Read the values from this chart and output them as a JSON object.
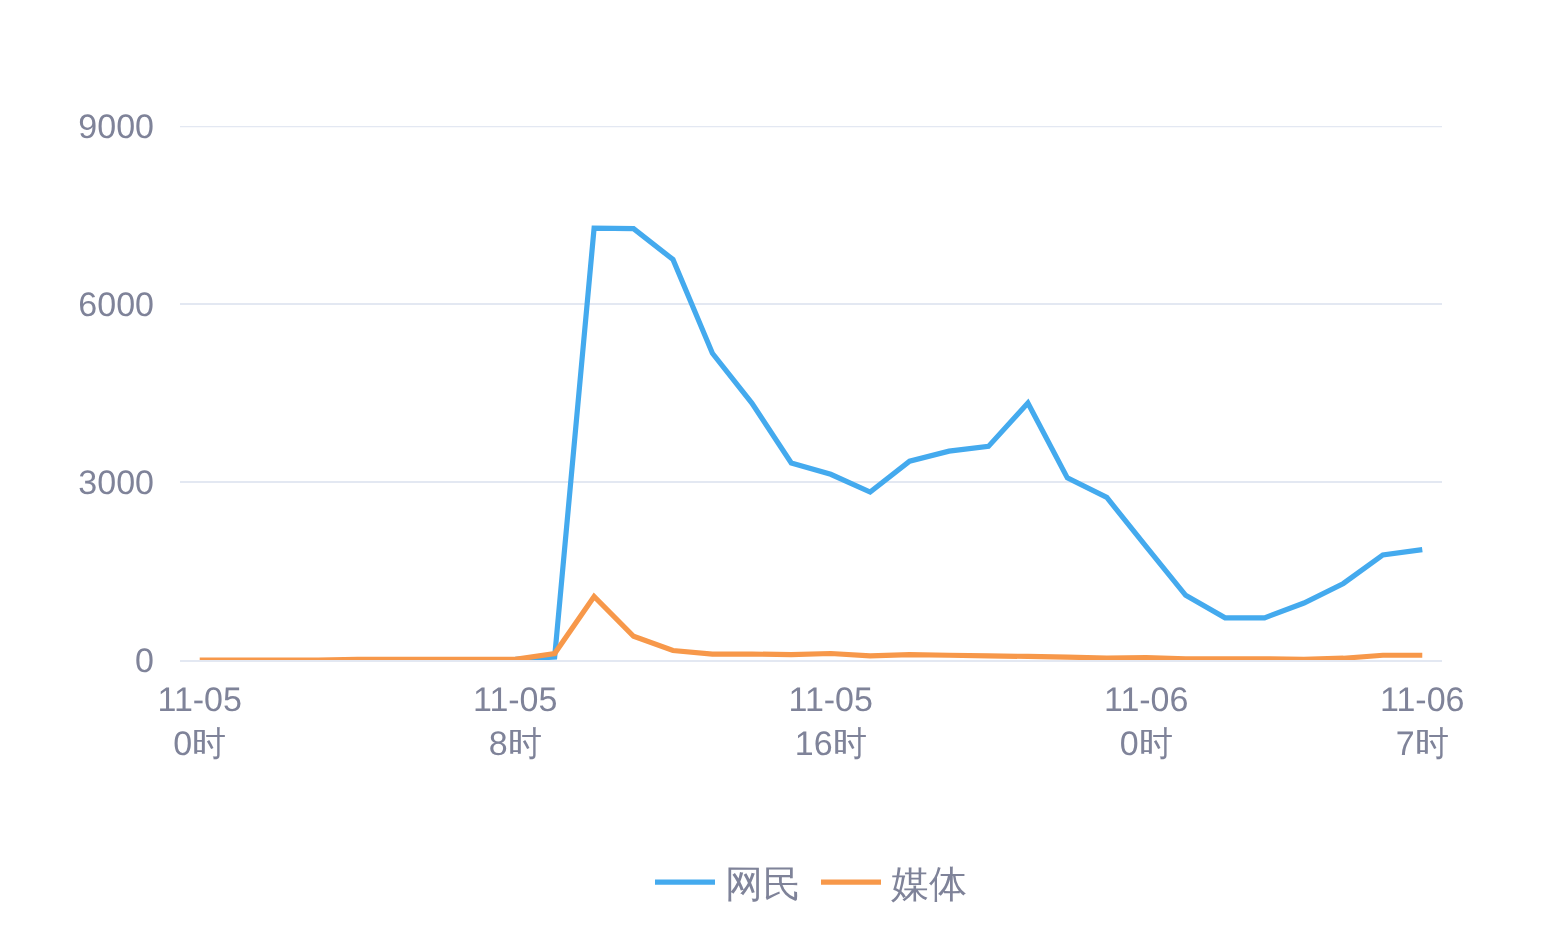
{
  "chart_data": {
    "type": "line",
    "categories": [
      "11-05\n0时",
      null,
      null,
      null,
      null,
      null,
      null,
      null,
      "11-05\n8时",
      null,
      null,
      null,
      null,
      null,
      null,
      null,
      "11-05\n16时",
      null,
      null,
      null,
      null,
      null,
      null,
      null,
      "11-06\n0时",
      null,
      null,
      null,
      null,
      null,
      null,
      "11-06\n7时"
    ],
    "series": [
      {
        "name": "网民",
        "color": "#44aaee",
        "values": [
          null,
          null,
          null,
          null,
          null,
          null,
          null,
          0,
          10,
          50,
          7280,
          7270,
          6750,
          5170,
          4330,
          3320,
          3130,
          2830,
          3350,
          3520,
          3600,
          4330,
          3070,
          2740,
          1910,
          1090,
          710,
          710,
          960,
          1290,
          1770,
          1860
        ]
      },
      {
        "name": "媒体",
        "color": "#f7984a",
        "values": [
          0,
          0,
          0,
          0,
          10,
          10,
          10,
          10,
          10,
          110,
          1070,
          400,
          160,
          100,
          100,
          90,
          110,
          70,
          90,
          80,
          70,
          60,
          50,
          30,
          40,
          20,
          20,
          20,
          10,
          30,
          80,
          80
        ]
      }
    ],
    "ylim": [
      0,
      9000
    ],
    "yticks": [
      0,
      3000,
      6000,
      9000
    ],
    "grid": "y",
    "legend": "bottom",
    "marker": "none",
    "line_style": "solid"
  }
}
